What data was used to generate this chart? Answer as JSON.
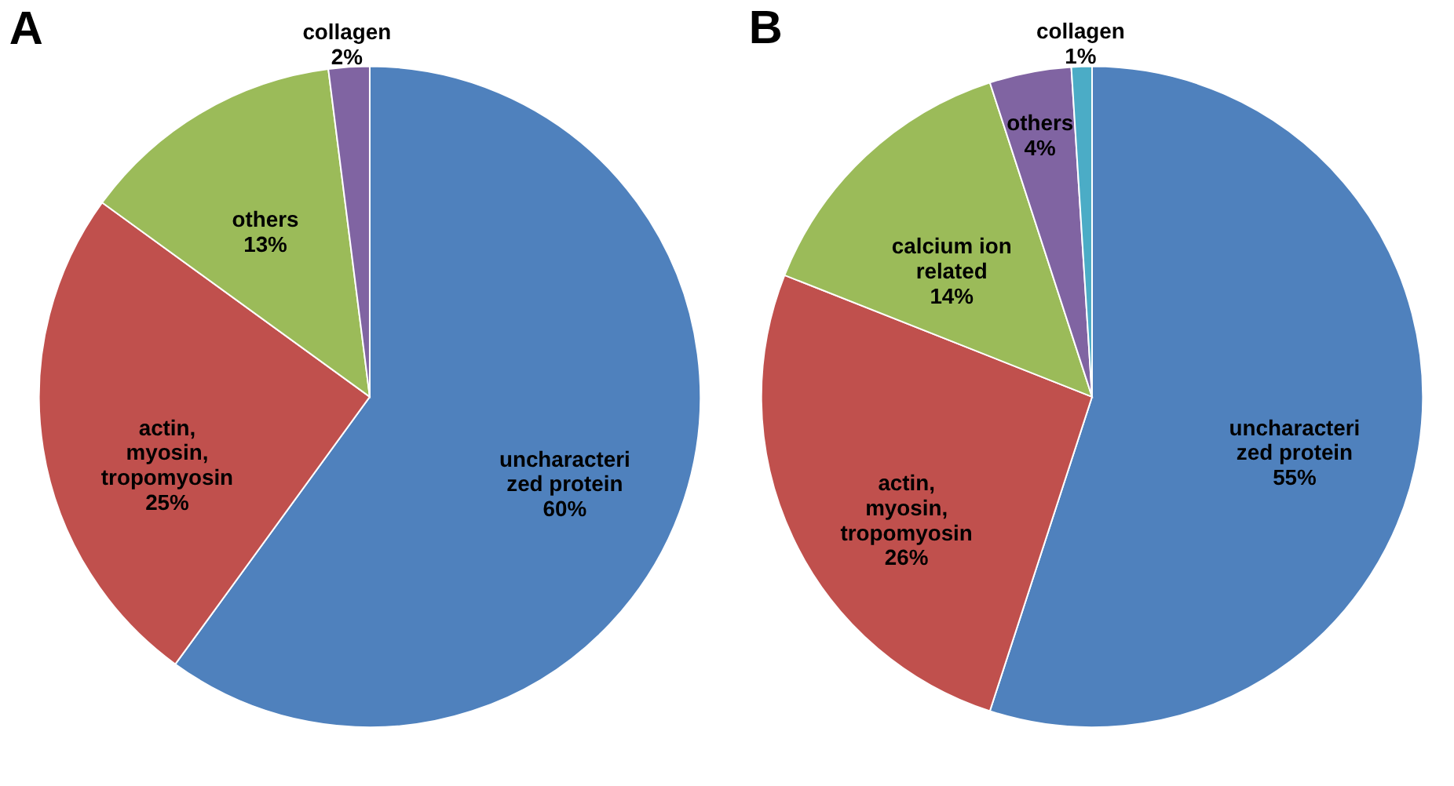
{
  "chart_data": [
    {
      "type": "pie",
      "title": "A",
      "categories": [
        "uncharacterized protein",
        "actin, myosin, tropomyosin",
        "others",
        "collagen"
      ],
      "values": [
        60,
        25,
        13,
        2
      ],
      "value_labels": [
        "60%",
        "25%",
        "13%",
        "2%"
      ],
      "colors": [
        "#4f81bd",
        "#c0504d",
        "#9bbb59",
        "#8064a2"
      ],
      "legend": false
    },
    {
      "type": "pie",
      "title": "B",
      "categories": [
        "uncharacterized protein",
        "actin, myosin, tropomyosin",
        "calcium ion related",
        "others",
        "collagen"
      ],
      "values": [
        55,
        26,
        14,
        4,
        1
      ],
      "value_labels": [
        "55%",
        "26%",
        "14%",
        "4%",
        "1%"
      ],
      "colors": [
        "#4f81bd",
        "#c0504d",
        "#9bbb59",
        "#8064a2",
        "#4bacc6"
      ],
      "legend": false
    }
  ]
}
